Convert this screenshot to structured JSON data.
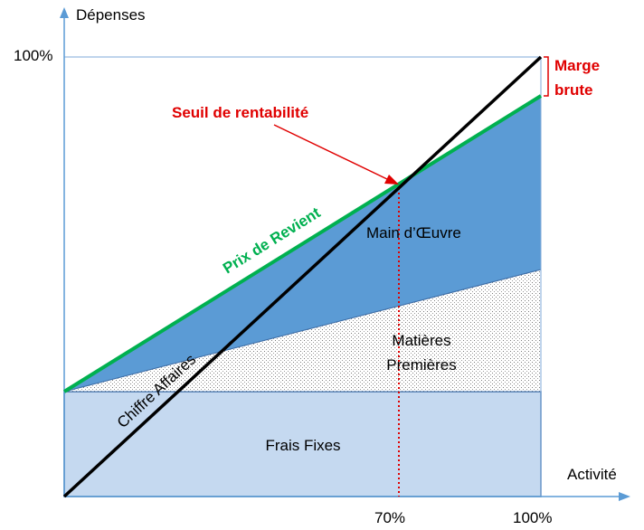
{
  "axes": {
    "y_title": "Dépenses",
    "x_title": "Activité",
    "y_tick_100": "100%",
    "x_tick_70": "70%",
    "x_tick_100": "100%"
  },
  "labels": {
    "seuil": "Seuil de rentabilité",
    "marge_line1": "Marge",
    "marge_line2": "brute",
    "prix_revient": "Prix de Revient",
    "chiffre_affaires": "Chiffre Affaires",
    "main_oeuvre": "Main d’Œuvre",
    "matieres_line1": "Matières",
    "matieres_line2": "Premières",
    "frais_fixes": "Frais Fixes"
  },
  "colors": {
    "frais_fixes_fill": "#c5d9f0",
    "main_oeuvre_fill": "#5b9bd5",
    "axis": "#5b9bd5",
    "prix_revient": "#00b050",
    "chiffre_affaires": "#000000",
    "annotation_red": "#e00000"
  }
}
